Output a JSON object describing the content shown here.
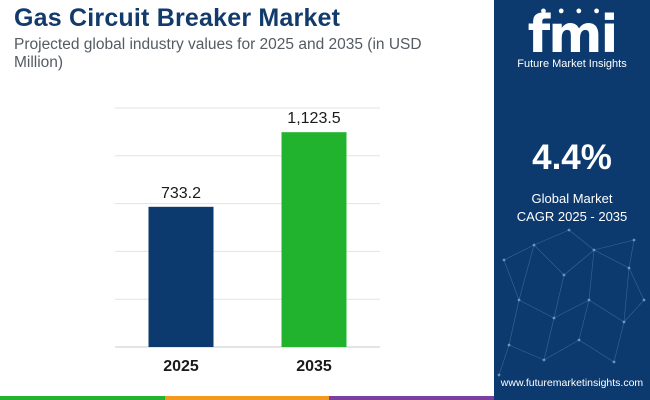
{
  "chart_data": {
    "type": "bar",
    "title": "Gas Circuit Breaker Market",
    "subtitle": "Projected global industry values for 2025 and 2035 (in USD Million)",
    "categories": [
      "2025",
      "2035"
    ],
    "values": [
      733.2,
      1123.5
    ],
    "value_labels": [
      "733.2",
      "1,123.5"
    ],
    "ylim": [
      0,
      1250
    ],
    "grid": true,
    "colors": [
      "#0d3a6e",
      "#22b32e"
    ]
  },
  "sidebar": {
    "logo_mark": "fmi",
    "logo_name": "Future Market Insights",
    "cagr_value": "4.4%",
    "cagr_line1": "Global Market",
    "cagr_line2": "CAGR 2025 - 2035",
    "website": "www.futuremarketinsights.com"
  },
  "colors": {
    "navy": "#0d3a6e",
    "green": "#22b32e",
    "footer": [
      "#22b32e",
      "#f39a1e",
      "#7b3fa0"
    ]
  }
}
